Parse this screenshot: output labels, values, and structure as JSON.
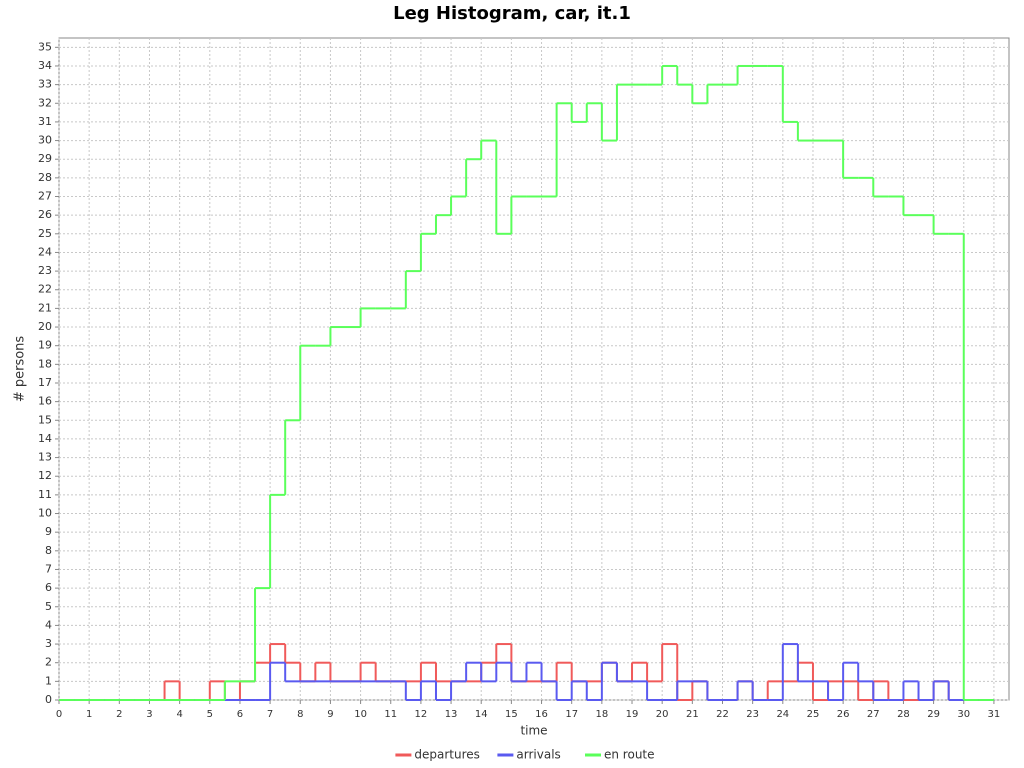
{
  "chart_data": {
    "type": "line",
    "step": true,
    "title": "Leg Histogram, car, it.1",
    "x_label": "time",
    "y_label": "# persons",
    "x": [
      0,
      0.5,
      1,
      1.5,
      2,
      2.5,
      3,
      3.5,
      4,
      4.5,
      5,
      5.5,
      6,
      6.5,
      7,
      7.5,
      8,
      8.5,
      9,
      9.5,
      10,
      10.5,
      11,
      11.5,
      12,
      12.5,
      13,
      13.5,
      14,
      14.5,
      15,
      15.5,
      16,
      16.5,
      17,
      17.5,
      18,
      18.5,
      19,
      19.5,
      20,
      20.5,
      21,
      21.5,
      22,
      22.5,
      23,
      23.5,
      24,
      24.5,
      25,
      25.5,
      26,
      26.5,
      27,
      27.5,
      28,
      28.5,
      29,
      29.5,
      30,
      30.5
    ],
    "series": [
      {
        "name": "departures",
        "color": "#f05a5a",
        "values": [
          0,
          0,
          0,
          0,
          0,
          0,
          0,
          1,
          0,
          0,
          1,
          0,
          1,
          2,
          3,
          2,
          1,
          2,
          1,
          1,
          2,
          1,
          1,
          1,
          2,
          1,
          1,
          1,
          2,
          3,
          1,
          1,
          1,
          2,
          1,
          1,
          2,
          1,
          2,
          1,
          3,
          0,
          1,
          0,
          0,
          1,
          0,
          1,
          1,
          2,
          0,
          1,
          1,
          0,
          1,
          0,
          0,
          0,
          1,
          0,
          0,
          0
        ]
      },
      {
        "name": "arrivals",
        "color": "#5a5af0",
        "values": [
          0,
          0,
          0,
          0,
          0,
          0,
          0,
          0,
          0,
          0,
          0,
          0,
          0,
          0,
          2,
          1,
          1,
          1,
          1,
          1,
          1,
          1,
          1,
          0,
          1,
          0,
          1,
          2,
          1,
          2,
          1,
          2,
          1,
          0,
          1,
          0,
          2,
          1,
          1,
          0,
          0,
          1,
          1,
          0,
          0,
          1,
          0,
          0,
          3,
          1,
          1,
          0,
          2,
          1,
          0,
          0,
          1,
          0,
          1,
          0,
          0,
          0
        ]
      },
      {
        "name": "en route",
        "color": "#5aff5a",
        "values": [
          0,
          0,
          0,
          0,
          0,
          0,
          0,
          0,
          0,
          0,
          0,
          1,
          1,
          6,
          11,
          15,
          19,
          19,
          20,
          20,
          21,
          21,
          21,
          23,
          25,
          26,
          27,
          29,
          30,
          25,
          27,
          27,
          27,
          32,
          31,
          32,
          30,
          33,
          33,
          33,
          34,
          33,
          32,
          33,
          33,
          34,
          34,
          34,
          31,
          30,
          30,
          30,
          28,
          28,
          27,
          27,
          26,
          26,
          25,
          25,
          0,
          0
        ]
      }
    ],
    "xlim": [
      0,
      31.5
    ],
    "ylim": [
      0,
      35.5
    ],
    "xticks": [
      0,
      1,
      2,
      3,
      4,
      5,
      6,
      7,
      8,
      9,
      10,
      11,
      12,
      13,
      14,
      15,
      16,
      17,
      18,
      19,
      20,
      21,
      22,
      23,
      24,
      25,
      26,
      27,
      28,
      29,
      30,
      31
    ],
    "yticks": [
      0,
      1,
      2,
      3,
      4,
      5,
      6,
      7,
      8,
      9,
      10,
      11,
      12,
      13,
      14,
      15,
      16,
      17,
      18,
      19,
      20,
      21,
      22,
      23,
      24,
      25,
      26,
      27,
      28,
      29,
      30,
      31,
      32,
      33,
      34,
      35
    ],
    "grid": true,
    "legend": "bottom"
  }
}
